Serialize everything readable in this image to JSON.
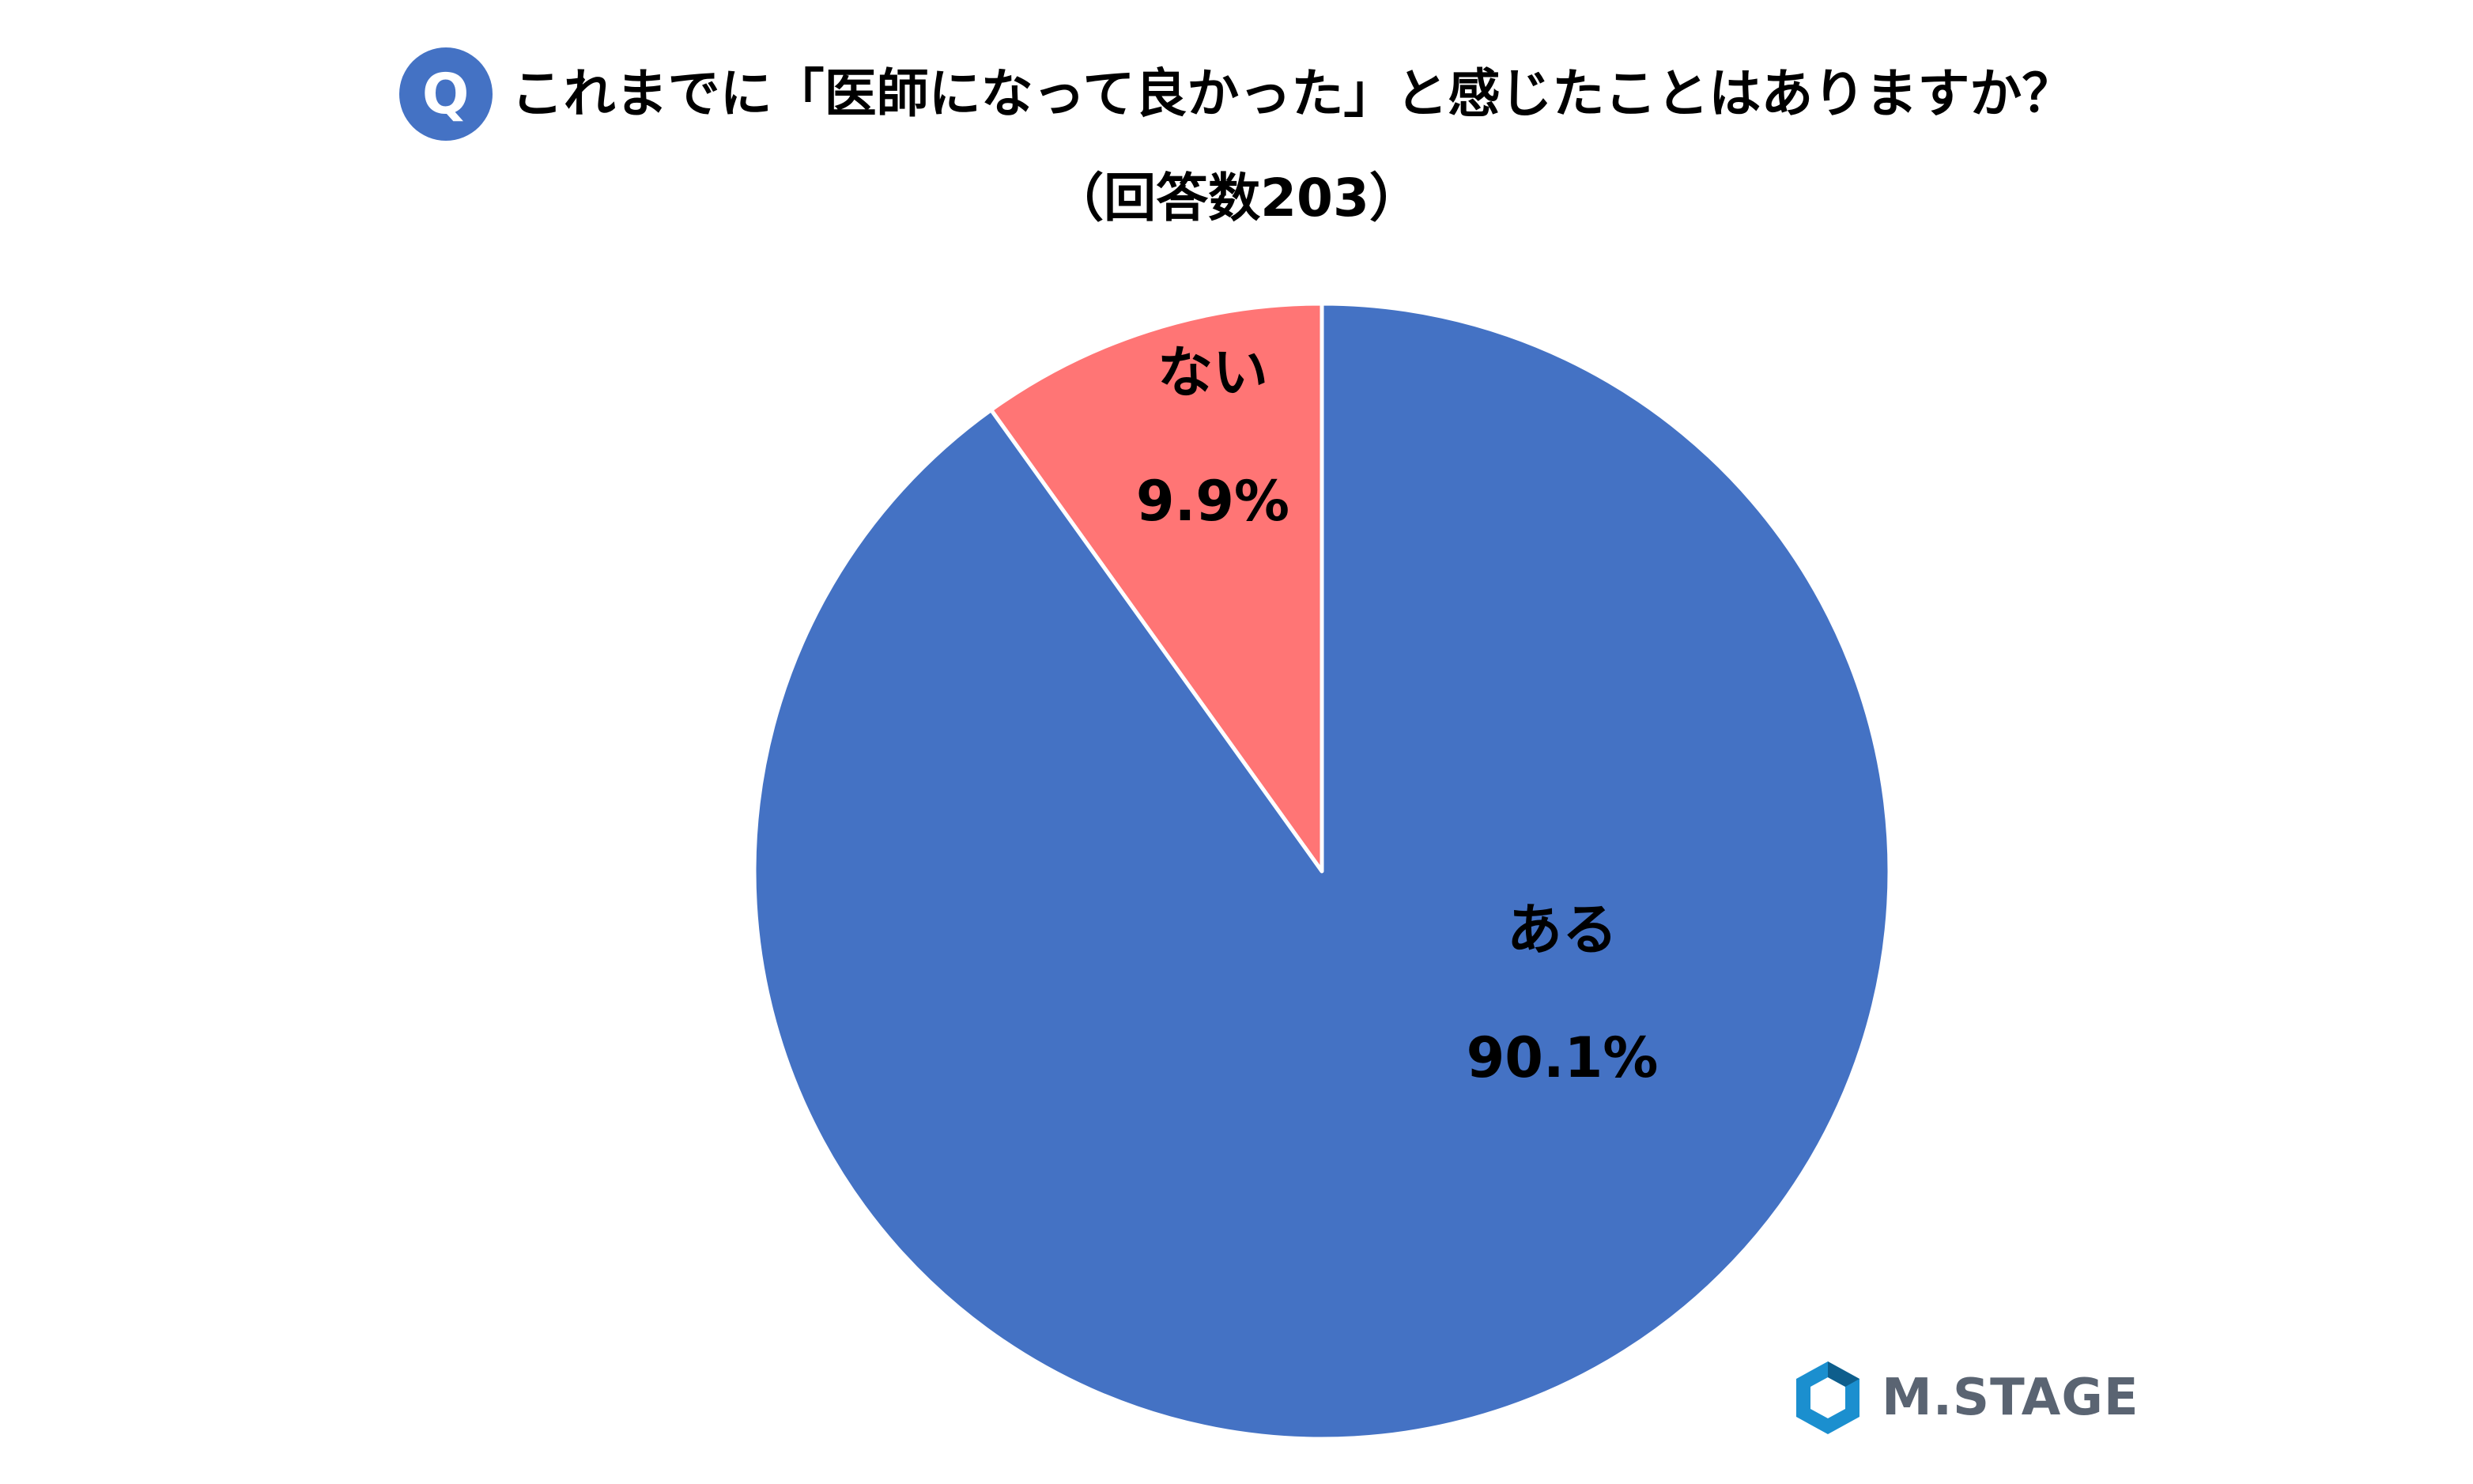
{
  "title": {
    "badge": "Q",
    "question": "これまでに「医師になって良かった」と感じたことはありますか？",
    "respondents": "（回答数203）"
  },
  "chart_data": {
    "type": "pie",
    "categories": [
      "ない",
      "ある"
    ],
    "values": [
      9.9,
      90.1
    ],
    "labels": [
      "9.9%",
      "90.1%"
    ],
    "colors": [
      "#FF7575",
      "#4472C4"
    ],
    "start_angle_deg": 0,
    "direction": "counterclockwise"
  },
  "logo": {
    "text": "M.STAGE",
    "colors": {
      "mark": "#1B8FCF",
      "text": "#5a6472"
    }
  }
}
